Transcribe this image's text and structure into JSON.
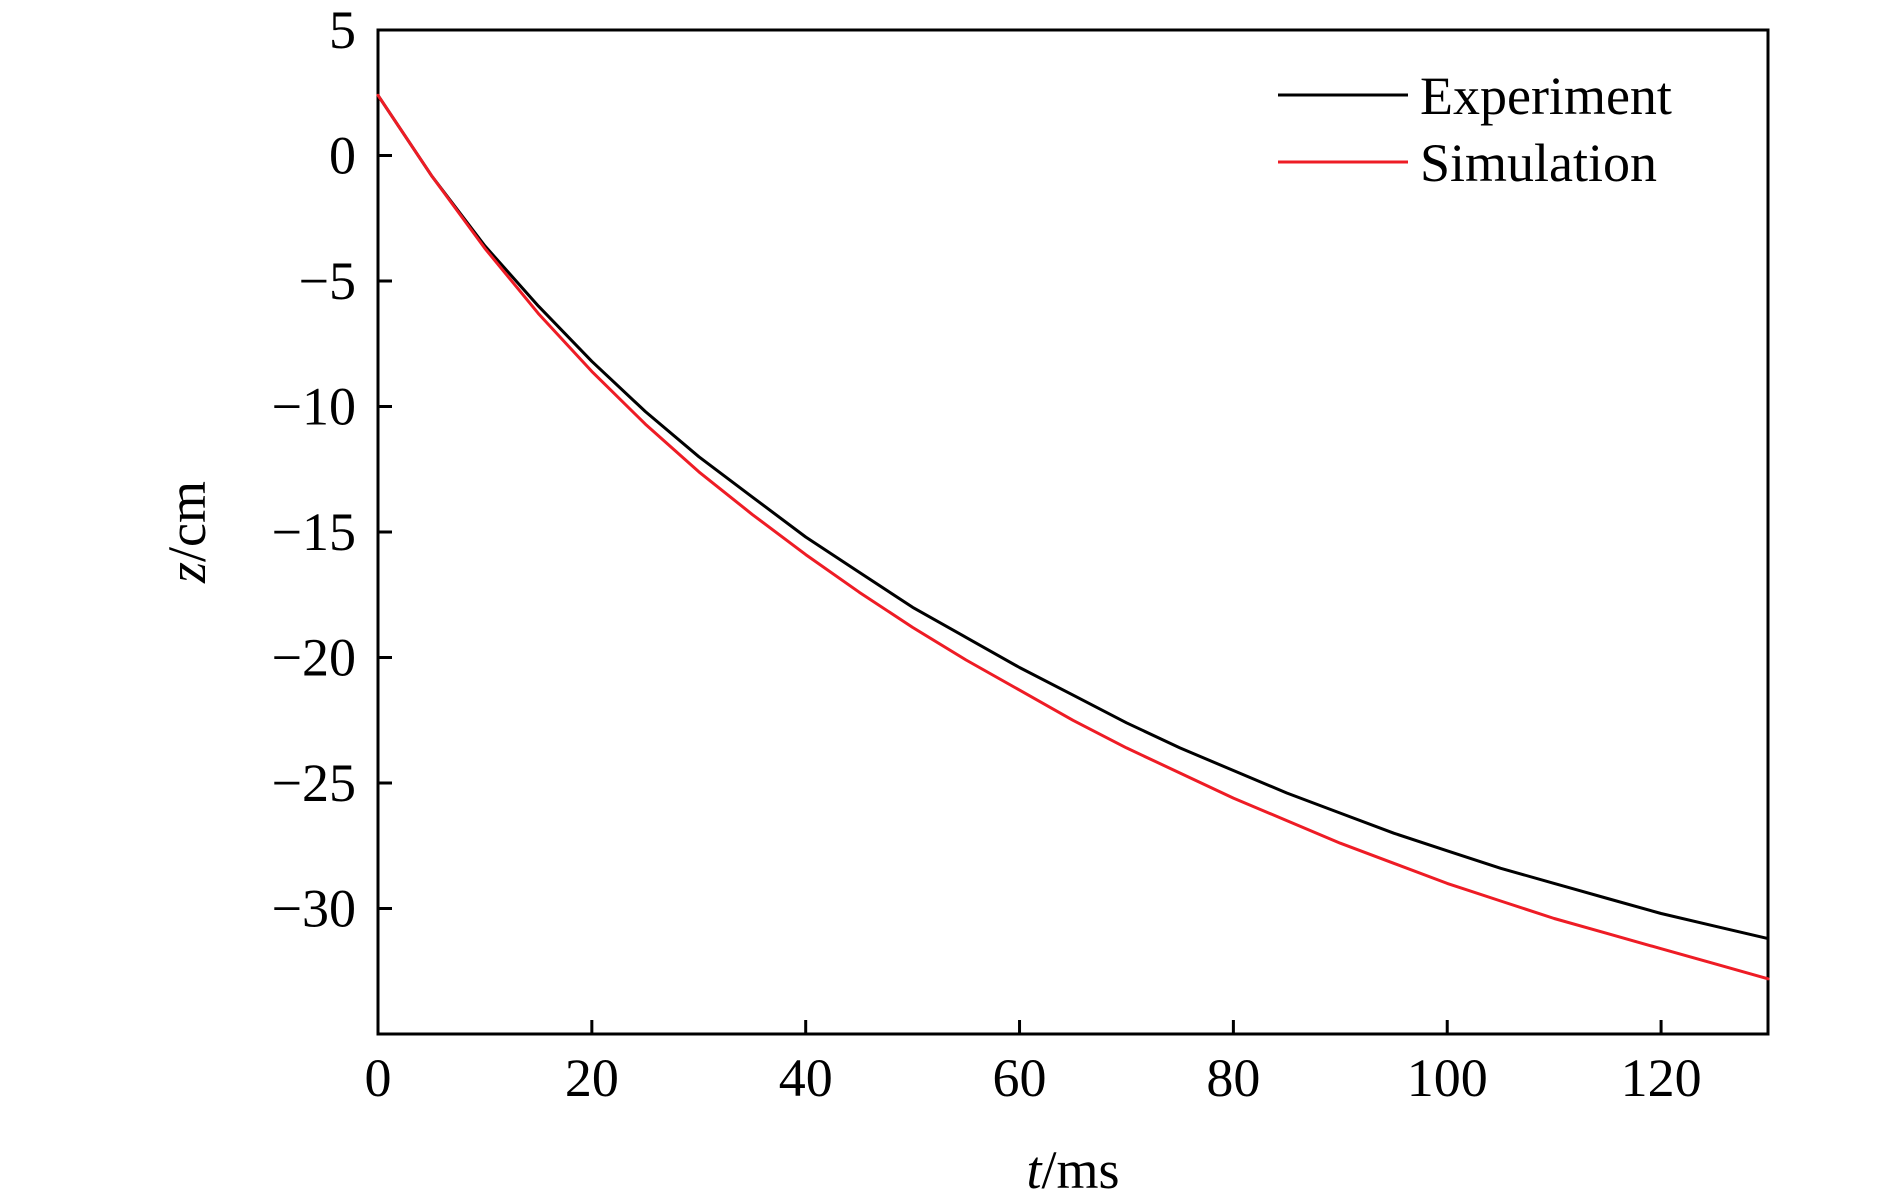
{
  "chart_data": {
    "type": "line",
    "title": "",
    "xlabel": {
      "italic": "t",
      "rest": "/ms"
    },
    "ylabel": {
      "italic": "z",
      "rest": "/cm"
    },
    "xlim": [
      0,
      130
    ],
    "ylim": [
      -35,
      5
    ],
    "xticks": [
      0,
      20,
      40,
      60,
      80,
      100,
      120
    ],
    "yticks": [
      5,
      0,
      -5,
      -10,
      -15,
      -20,
      -25,
      -30
    ],
    "xtick_labels": [
      "0",
      "20",
      "40",
      "60",
      "80",
      "100",
      "120"
    ],
    "ytick_labels": [
      "5",
      "0",
      "−5",
      "−10",
      "−15",
      "−20",
      "−25",
      "−30"
    ],
    "grid": false,
    "legend_position": "top-right",
    "series": [
      {
        "name": "Experiment",
        "color": "#000000",
        "x": [
          0,
          5,
          10,
          15,
          20,
          25,
          30,
          35,
          40,
          45,
          50,
          55,
          60,
          65,
          70,
          75,
          80,
          85,
          90,
          95,
          100,
          105,
          110,
          115,
          120,
          125,
          130
        ],
        "y": [
          2.4,
          -0.8,
          -3.6,
          -6.0,
          -8.2,
          -10.2,
          -12.0,
          -13.6,
          -15.2,
          -16.6,
          -18.0,
          -19.2,
          -20.4,
          -21.5,
          -22.6,
          -23.6,
          -24.5,
          -25.4,
          -26.2,
          -27.0,
          -27.7,
          -28.4,
          -29.0,
          -29.6,
          -30.2,
          -30.7,
          -31.2
        ]
      },
      {
        "name": "Simulation",
        "color": "#ee1c25",
        "x": [
          0,
          5,
          10,
          15,
          20,
          25,
          30,
          35,
          40,
          45,
          50,
          55,
          60,
          65,
          70,
          75,
          80,
          85,
          90,
          95,
          100,
          105,
          110,
          115,
          120,
          125,
          130
        ],
        "y": [
          2.4,
          -0.8,
          -3.7,
          -6.3,
          -8.6,
          -10.7,
          -12.6,
          -14.3,
          -15.9,
          -17.4,
          -18.8,
          -20.1,
          -21.3,
          -22.5,
          -23.6,
          -24.6,
          -25.6,
          -26.5,
          -27.4,
          -28.2,
          -29.0,
          -29.7,
          -30.4,
          -31.0,
          -31.6,
          -32.2,
          -32.8
        ]
      }
    ]
  }
}
